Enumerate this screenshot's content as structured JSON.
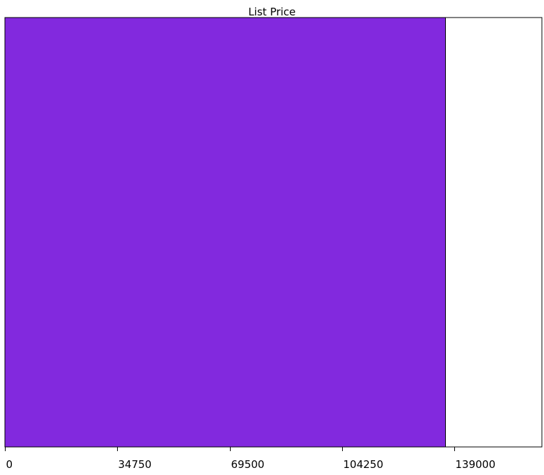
{
  "chart_data": {
    "type": "bar",
    "orientation": "horizontal",
    "title": "List Price",
    "xlabel": "",
    "ylabel": "",
    "categories": [
      ""
    ],
    "values": [
      136200
    ],
    "xlim": [
      0,
      166000
    ],
    "x_ticks": [
      0,
      34750,
      69500,
      104250,
      139000
    ],
    "x_tick_labels": [
      "0",
      "34750",
      "69500",
      "104250",
      "139000"
    ],
    "grid": false,
    "legend": "none",
    "bar_color": "#8229DE",
    "bar_edge_color": "#000000",
    "axis_color": "#000000",
    "background_color": "#FFFFFF"
  }
}
